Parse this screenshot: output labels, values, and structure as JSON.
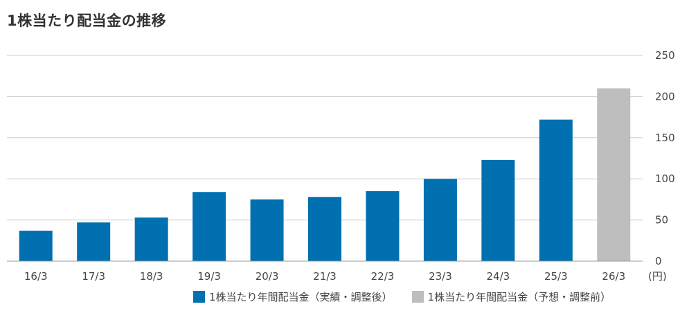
{
  "chart_data": {
    "type": "bar",
    "title": "1株当たり配当金の推移",
    "unit_label": "(円)",
    "categories": [
      "16/3",
      "17/3",
      "18/3",
      "19/3",
      "20/3",
      "21/3",
      "22/3",
      "23/3",
      "24/3",
      "25/3",
      "26/3"
    ],
    "series": [
      {
        "name": "1株当たり年間配当金（実績・調整後）",
        "color": "#0070b0",
        "values": [
          37,
          47,
          53,
          84,
          75,
          78,
          85,
          100,
          123,
          172,
          null
        ]
      },
      {
        "name": "1株当たり年間配当金（予想・調整前）",
        "color": "#bebebe",
        "values": [
          null,
          null,
          null,
          null,
          null,
          null,
          null,
          null,
          null,
          null,
          210
        ]
      }
    ],
    "ylim": [
      0,
      250
    ],
    "yticks": [
      0,
      50,
      100,
      150,
      200,
      250
    ],
    "grid": true,
    "axis_position": "right",
    "legend_position": "bottom-right"
  }
}
